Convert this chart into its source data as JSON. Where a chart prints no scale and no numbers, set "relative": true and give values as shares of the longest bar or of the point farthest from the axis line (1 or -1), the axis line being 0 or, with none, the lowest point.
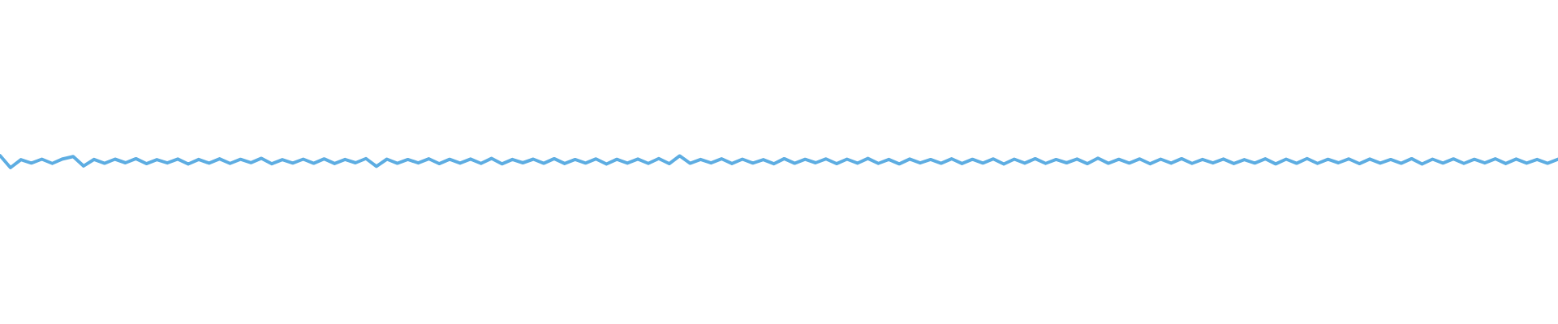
{
  "chart_data": {
    "type": "line",
    "relative": true,
    "marker": "none",
    "line_style": "solid",
    "legend": false,
    "color": "#5dade2",
    "categories": [
      null,
      null,
      null,
      null,
      null,
      null,
      null,
      null,
      null,
      null,
      null,
      null,
      null,
      null,
      null,
      null,
      null,
      null,
      null,
      null,
      null,
      null,
      null,
      null,
      null,
      null,
      null,
      null,
      null,
      null,
      null,
      null,
      null,
      null,
      null,
      null,
      null,
      null,
      null,
      null,
      null,
      null,
      null,
      null,
      null,
      null,
      null,
      null,
      null,
      null,
      null,
      null,
      null,
      null,
      null,
      null,
      null,
      null,
      null,
      null,
      null,
      null,
      null,
      null,
      null,
      null,
      null,
      null,
      null,
      null,
      null,
      null,
      null,
      null,
      null,
      null,
      null,
      null,
      null,
      null,
      null,
      null,
      null,
      null,
      null,
      null,
      null,
      null,
      null,
      null,
      null,
      null,
      null,
      null,
      null,
      null,
      null,
      null,
      null,
      null,
      null,
      null,
      null,
      null,
      null,
      null,
      null,
      null,
      null,
      null,
      null,
      null,
      null,
      null,
      null,
      null,
      null,
      null,
      null,
      null,
      null,
      null,
      null,
      null,
      null,
      null,
      null,
      null,
      null,
      null,
      null,
      null,
      null,
      null,
      null,
      null,
      null,
      null,
      null,
      null,
      null,
      null,
      null,
      null,
      null,
      null,
      null,
      null,
      null,
      null
    ],
    "values": [
      1,
      0,
      0.66,
      0.38,
      0.7,
      0.35,
      0.72,
      0.92,
      0.14,
      0.68,
      0.36,
      0.7,
      0.4,
      0.74,
      0.33,
      0.66,
      0.39,
      0.71,
      0.3,
      0.68,
      0.37,
      0.73,
      0.35,
      0.69,
      0.41,
      0.77,
      0.32,
      0.66,
      0.38,
      0.7,
      0.36,
      0.72,
      0.34,
      0.68,
      0.4,
      0.75,
      0.11,
      0.7,
      0.36,
      0.67,
      0.39,
      0.73,
      0.33,
      0.69,
      0.37,
      0.71,
      0.35,
      0.76,
      0.31,
      0.68,
      0.4,
      0.7,
      0.36,
      0.74,
      0.34,
      0.67,
      0.38,
      0.72,
      0.3,
      0.69,
      0.37,
      0.71,
      0.35,
      0.75,
      0.33,
      0.97,
      0.36,
      0.68,
      0.39,
      0.73,
      0.34,
      0.7,
      0.38,
      0.66,
      0.32,
      0.74,
      0.36,
      0.69,
      0.4,
      0.72,
      0.33,
      0.7,
      0.37,
      0.76,
      0.35,
      0.68,
      0.31,
      0.71,
      0.39,
      0.67,
      0.36,
      0.73,
      0.34,
      0.69,
      0.38,
      0.72,
      0.3,
      0.7,
      0.37,
      0.74,
      0.35,
      0.67,
      0.4,
      0.71,
      0.33,
      0.78,
      0.36,
      0.69,
      0.38,
      0.72,
      0.32,
      0.7,
      0.37,
      0.74,
      0.35,
      0.68,
      0.39,
      0.71,
      0.34,
      0.66,
      0.38,
      0.73,
      0.31,
      0.7,
      0.36,
      0.75,
      0.35,
      0.69,
      0.4,
      0.72,
      0.33,
      0.71,
      0.37,
      0.67,
      0.36,
      0.74,
      0.3,
      0.7,
      0.38,
      0.72,
      0.35,
      0.69,
      0.39,
      0.73,
      0.34,
      0.71,
      0.37,
      0.68,
      0.36,
      0.7
    ]
  }
}
